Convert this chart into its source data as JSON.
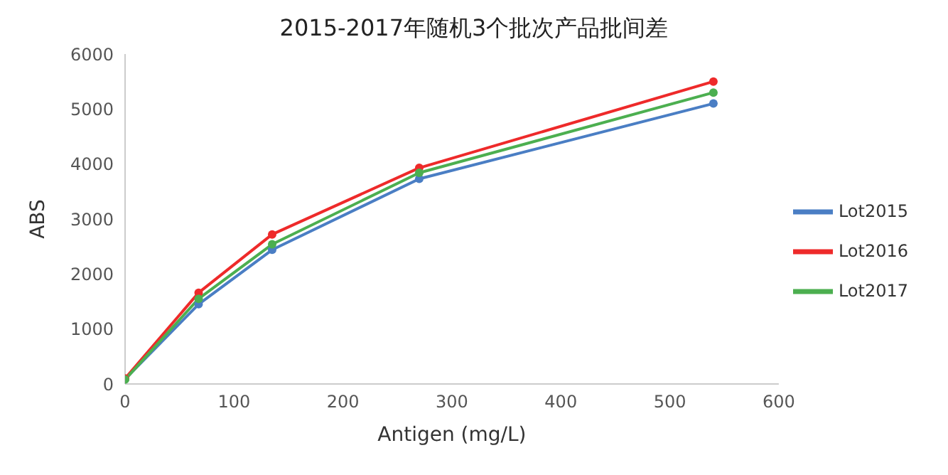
{
  "chart_data": {
    "type": "line",
    "title": "2015-2017年随机3个批次产品批间差",
    "xlabel": "Antigen (mg/L)",
    "ylabel": "ABS",
    "x": [
      0,
      67.5,
      135,
      270,
      540
    ],
    "series": [
      {
        "name": "Lot2015",
        "color": "#4a7ec4",
        "values": [
          90,
          1450,
          2440,
          3730,
          5100
        ]
      },
      {
        "name": "Lot2016",
        "color": "#ee2a2a",
        "values": [
          100,
          1660,
          2720,
          3930,
          5500
        ]
      },
      {
        "name": "Lot2017",
        "color": "#4caf50",
        "values": [
          80,
          1550,
          2540,
          3840,
          5300
        ]
      }
    ],
    "xlim": [
      0,
      600
    ],
    "xticks": [
      0,
      100,
      200,
      300,
      400,
      500,
      600
    ],
    "ylim": [
      0,
      6000
    ],
    "yticks": [
      0,
      1000,
      2000,
      3000,
      4000,
      5000,
      6000
    ],
    "grid": false,
    "legend": "right",
    "marker": "circle",
    "line_style": "solid"
  }
}
